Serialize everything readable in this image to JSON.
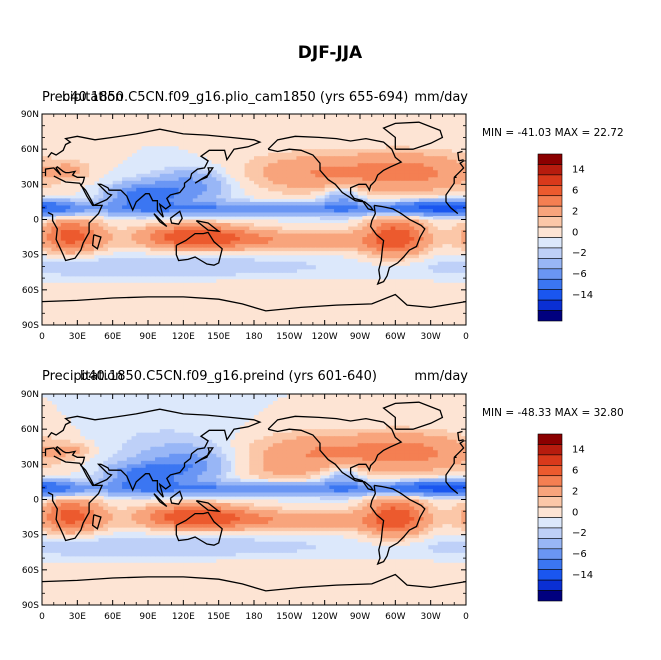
{
  "figure": {
    "title": "DJF-JJA",
    "colors": {
      "levels": [
        "#00007f",
        "#0a2fd3",
        "#1a56f0",
        "#3b76f2",
        "#6a96f4",
        "#98b6f6",
        "#bed0f8",
        "#dce8fb",
        "#fde4d4",
        "#fbc7a8",
        "#f8a47c",
        "#f47f52",
        "#ec5a2e",
        "#d9391b",
        "#b71c0e",
        "#8b0000"
      ],
      "level_labels": [
        "-14",
        "-6",
        "-2",
        "0",
        "2",
        "6",
        "14"
      ]
    },
    "panels": [
      {
        "case_label": "b40.1850.C5CN.f09_g16.plio_cam1850 (yrs 655-694)",
        "variable_label": "Precipitation",
        "units_label": "mm/day",
        "min_max": "MIN = -41.03 MAX =  22.72",
        "lat_labels": [
          "90N",
          "60N",
          "30N",
          "0",
          "30S",
          "60S",
          "90S"
        ],
        "lon_labels": [
          "0",
          "30E",
          "60E",
          "90E",
          "120E",
          "150E",
          "180",
          "150W",
          "120W",
          "90W",
          "60W",
          "30W",
          "0"
        ]
      },
      {
        "case_label": "b40.1850.C5CN.f09_g16.preind (yrs 601-640)",
        "variable_label": "Precipitation",
        "units_label": "mm/day",
        "min_max": "MIN = -48.33 MAX =  32.80",
        "lat_labels": [
          "90N",
          "60N",
          "30N",
          "0",
          "30S",
          "60S",
          "90S"
        ],
        "lon_labels": [
          "0",
          "30E",
          "60E",
          "90E",
          "120E",
          "150E",
          "180",
          "150W",
          "120W",
          "90W",
          "60W",
          "30W",
          "0"
        ]
      }
    ]
  }
}
